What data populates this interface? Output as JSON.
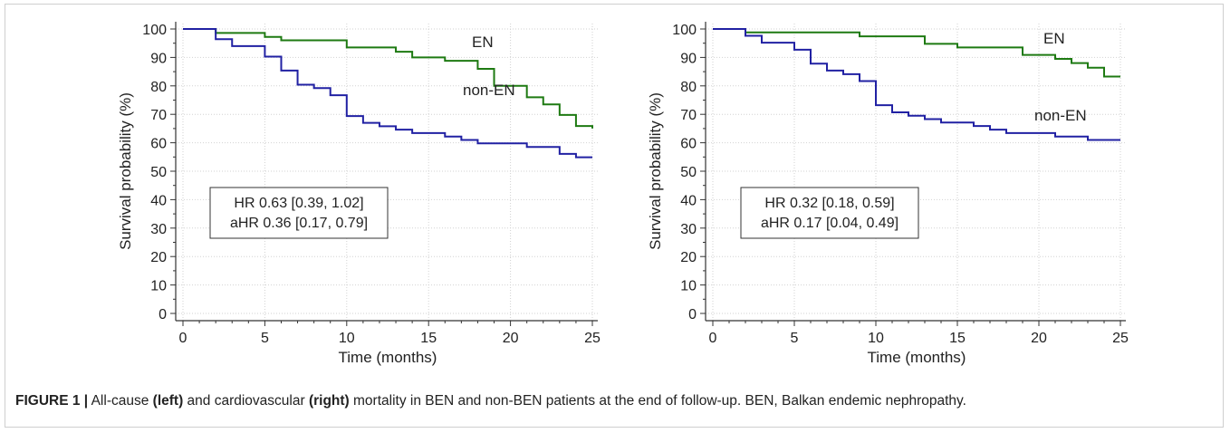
{
  "chart_data": [
    {
      "type": "line",
      "step": true,
      "xlabel": "Time (months)",
      "ylabel": "Survival probability (%)",
      "xlim": [
        0,
        25
      ],
      "ylim": [
        0,
        100
      ],
      "xticks": [
        0,
        5,
        10,
        15,
        20,
        25
      ],
      "yticks": [
        0,
        10,
        20,
        30,
        40,
        50,
        60,
        70,
        80,
        90,
        100
      ],
      "grid": true,
      "stats_box": [
        "HR 0.63 [0.39, 1.02]",
        "aHR 0.36 [0.17, 0.79]"
      ],
      "series": [
        {
          "name": "EN",
          "color": "#1e7a12",
          "x": [
            0,
            2,
            3,
            5,
            6,
            7,
            9,
            10,
            11,
            12,
            13,
            14,
            15,
            16,
            17,
            18,
            19,
            20,
            21,
            22,
            23,
            24,
            25
          ],
          "y": [
            100,
            98.6,
            98.6,
            97.2,
            96.0,
            96.0,
            96.0,
            93.5,
            93.5,
            93.5,
            92.0,
            90.0,
            90.0,
            88.8,
            88.8,
            86.0,
            80.0,
            80.0,
            76.0,
            73.5,
            69.8,
            65.9,
            65.0
          ]
        },
        {
          "name": "non-EN",
          "color": "#2121a3",
          "x": [
            0,
            2,
            3,
            5,
            6,
            7,
            8,
            9,
            10,
            11,
            12,
            13,
            14,
            15,
            16,
            17,
            18,
            19,
            20,
            21,
            22,
            23,
            24,
            25
          ],
          "y": [
            100,
            96.4,
            94.0,
            90.3,
            85.4,
            80.4,
            79.2,
            76.7,
            69.4,
            67.0,
            65.8,
            64.6,
            63.4,
            63.4,
            62.2,
            61.0,
            59.8,
            59.8,
            59.8,
            58.5,
            58.5,
            56.1,
            54.9,
            54.9
          ]
        }
      ]
    },
    {
      "type": "line",
      "step": true,
      "xlabel": "Time (months)",
      "ylabel": "Survival probability (%)",
      "xlim": [
        0,
        25
      ],
      "ylim": [
        0,
        100
      ],
      "xticks": [
        0,
        5,
        10,
        15,
        20,
        25
      ],
      "yticks": [
        0,
        10,
        20,
        30,
        40,
        50,
        60,
        70,
        80,
        90,
        100
      ],
      "grid": true,
      "stats_box": [
        "HR 0.32 [0.18, 0.59]",
        "aHR 0.17 [0.04, 0.49]"
      ],
      "series": [
        {
          "name": "EN",
          "color": "#1e7a12",
          "x": [
            0,
            2,
            9,
            13,
            15,
            19,
            21,
            22,
            23,
            24,
            25
          ],
          "y": [
            100,
            98.8,
            97.4,
            94.8,
            93.5,
            90.9,
            89.5,
            88.0,
            86.4,
            83.3,
            83.3
          ],
          "tail_y": 83.3
        },
        {
          "name": "non-EN",
          "color": "#2121a3",
          "x": [
            0,
            2,
            3,
            5,
            6,
            7,
            8,
            9,
            10,
            11,
            12,
            13,
            14,
            16,
            17,
            18,
            19,
            20,
            21,
            22,
            23,
            24,
            25
          ],
          "y": [
            100,
            97.6,
            95.2,
            92.7,
            87.8,
            85.4,
            84.1,
            81.7,
            73.2,
            70.7,
            69.5,
            68.3,
            67.1,
            65.9,
            64.6,
            63.4,
            63.4,
            63.4,
            62.2,
            62.2,
            61.0,
            61.0,
            61.0
          ]
        }
      ]
    }
  ],
  "caption": {
    "label": "FIGURE 1 |",
    "t1": " All-cause ",
    "b1": "(left)",
    "t2": " and cardiovascular ",
    "b2": "(right)",
    "t3": " mortality in BEN and non-BEN patients at the end of follow-up. BEN, Balkan endemic nephropathy."
  }
}
